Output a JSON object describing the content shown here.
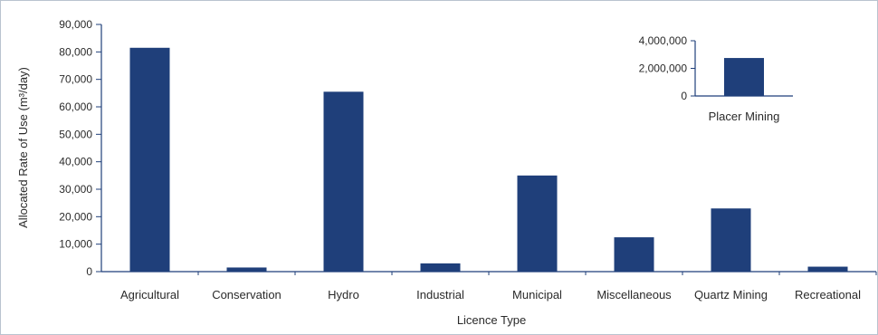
{
  "chart_data": [
    {
      "type": "bar",
      "title": "",
      "xlabel": "Licence Type",
      "ylabel": "Allocated Rate of Use (m³/day)",
      "ylim": [
        0,
        90000
      ],
      "yticks": [
        0,
        10000,
        20000,
        30000,
        40000,
        50000,
        60000,
        70000,
        80000,
        90000
      ],
      "ytick_labels": [
        "0",
        "10,000",
        "20,000",
        "30,000",
        "40,000",
        "50,000",
        "60,000",
        "70,000",
        "80,000",
        "90,000"
      ],
      "categories": [
        "Agricultural",
        "Conservation",
        "Hydro",
        "Industrial",
        "Municipal",
        "Miscellaneous",
        "Quartz Mining",
        "Recreational"
      ],
      "values": [
        81500,
        1500,
        65500,
        3000,
        35000,
        12500,
        23000,
        1800
      ],
      "bar_color": "#1f3f7a",
      "grid": false
    },
    {
      "type": "bar",
      "title": "",
      "xlabel": "",
      "ylabel": "",
      "ylim": [
        0,
        4000000
      ],
      "yticks": [
        0,
        2000000,
        4000000
      ],
      "ytick_labels": [
        "0",
        "2,000,000",
        "4,000,000"
      ],
      "categories": [
        "Placer Mining"
      ],
      "values": [
        2750000
      ],
      "bar_color": "#1f3f7a",
      "grid": false,
      "placement": "inset top-right"
    }
  ]
}
